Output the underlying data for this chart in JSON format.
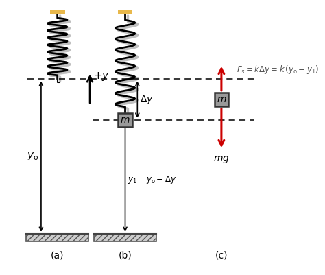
{
  "fig_width": 4.74,
  "fig_height": 4.01,
  "dpi": 100,
  "bg_color": "#ffffff",
  "arrow_color": "#cc0000",
  "box_color": "#999999",
  "box_edge": "#333333",
  "floor_color": "#cccccc",
  "mount_color": "#e8b84b",
  "label_a": "(a)",
  "label_b": "(b)",
  "label_c": "(c)"
}
